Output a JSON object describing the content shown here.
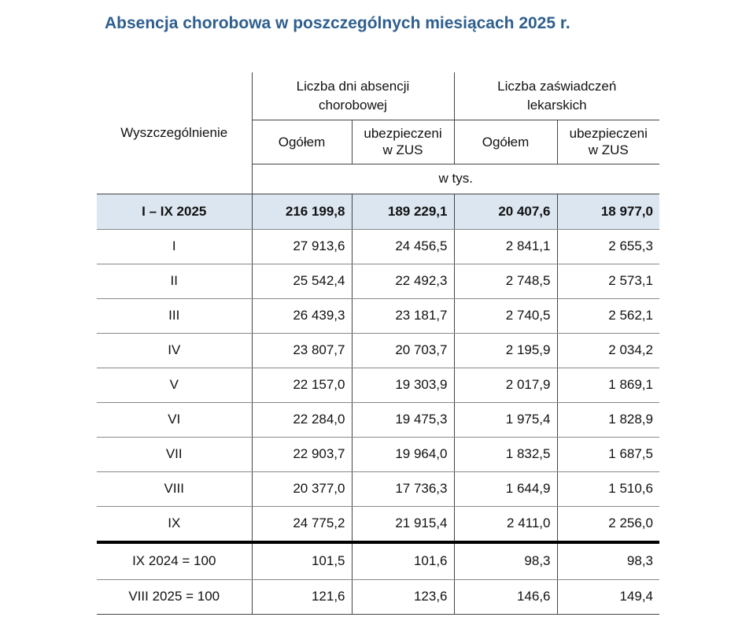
{
  "title": "Absencja chorobowa w poszczególnych miesiącach 2025 r.",
  "table": {
    "header": {
      "stub": "Wyszczególnienie",
      "groups": [
        "Liczba dni absencji chorobowej",
        "Liczba zaświadczeń lekarskich"
      ],
      "sub": [
        "Ogółem",
        "ubezpieczeni w ZUS",
        "Ogółem",
        "ubezpieczeni w ZUS"
      ],
      "unit": "w tys."
    },
    "rows": [
      [
        "I – IX 2025",
        "216 199,8",
        "189 229,1",
        "20 407,6",
        "18 977,0"
      ],
      [
        "I",
        "27 913,6",
        "24 456,5",
        "2 841,1",
        "2 655,3"
      ],
      [
        "II",
        "25 542,4",
        "22 492,3",
        "2 748,5",
        "2 573,1"
      ],
      [
        "III",
        "26 439,3",
        "23 181,7",
        "2 740,5",
        "2 562,1"
      ],
      [
        "IV",
        "23 807,7",
        "20 703,7",
        "2 195,9",
        "2 034,2"
      ],
      [
        "V",
        "22 157,0",
        "19 303,9",
        "2 017,9",
        "1 869,1"
      ],
      [
        "VI",
        "22 284,0",
        "19 475,3",
        "1 975,4",
        "1 828,9"
      ],
      [
        "VII",
        "22 903,7",
        "19 964,0",
        "1 832,5",
        "1 687,5"
      ],
      [
        "VIII",
        "20 377,0",
        "17 736,3",
        "1 644,9",
        "1 510,6"
      ],
      [
        "IX",
        "24 775,2",
        "21 915,4",
        "2 411,0",
        "2 256,0"
      ],
      [
        "IX 2024 = 100",
        "101,5",
        "101,6",
        "98,3",
        "98,3"
      ],
      [
        "VIII 2025 = 100",
        "121,6",
        "123,6",
        "146,6",
        "149,4"
      ]
    ]
  }
}
